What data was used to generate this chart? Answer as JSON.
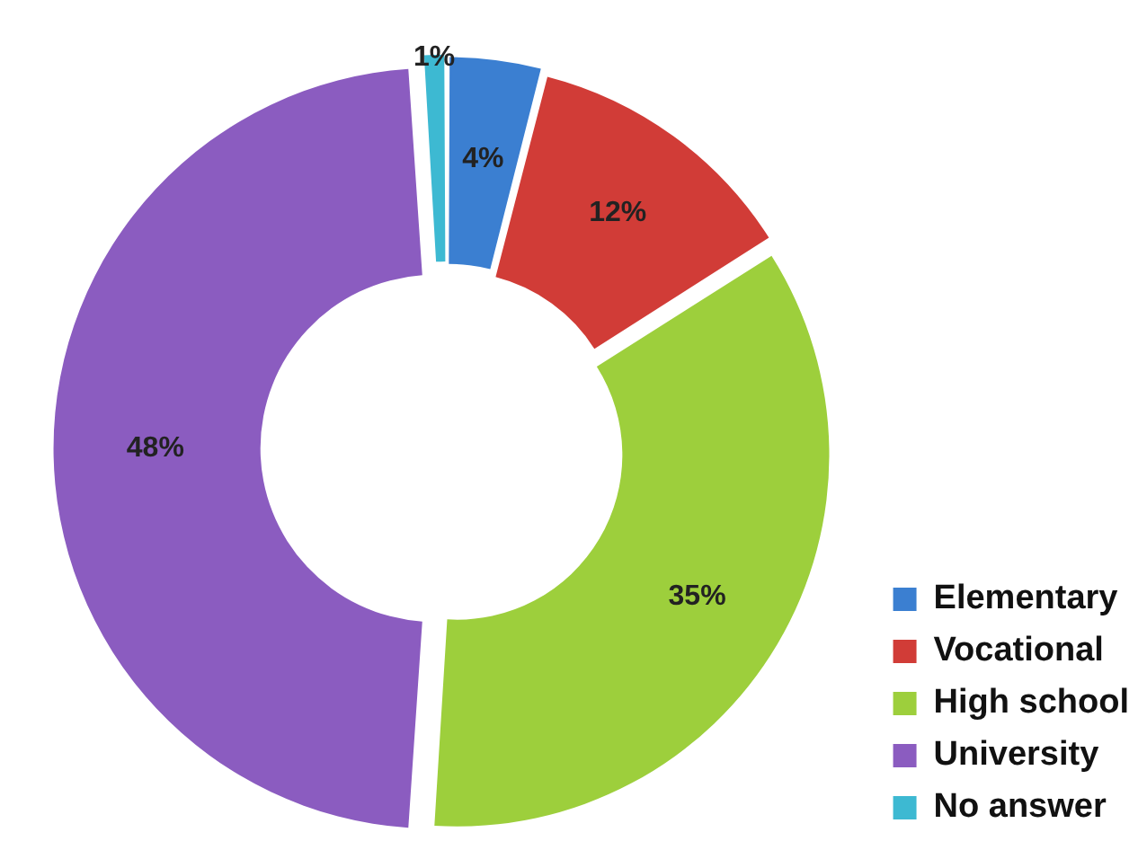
{
  "chart_data": {
    "type": "donut",
    "categories": [
      "Elementary",
      "Vocational",
      "High school",
      "University",
      "No answer"
    ],
    "values": [
      4,
      12,
      35,
      48,
      1
    ],
    "colors": [
      "#3b7fd1",
      "#d13c37",
      "#9dcf3c",
      "#8b5cc0",
      "#3db9d2"
    ],
    "value_labels": [
      "4%",
      "12%",
      "35%",
      "48%",
      "1%"
    ],
    "legend": "bottom right"
  }
}
